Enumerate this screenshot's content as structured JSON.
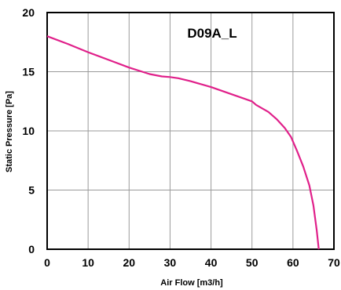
{
  "chart_data": {
    "type": "line",
    "title": "D09A_L",
    "xlabel": "Air Flow [m3/h]",
    "ylabel": "Static Pressure [Pa]",
    "xlim": [
      0,
      70
    ],
    "ylim": [
      0,
      20
    ],
    "xticks": [
      0,
      10,
      20,
      30,
      40,
      50,
      60,
      70
    ],
    "yticks": [
      0,
      5,
      10,
      15,
      20
    ],
    "grid": true,
    "series": [
      {
        "color": "#e0208a",
        "points": [
          [
            0,
            18.0
          ],
          [
            5,
            17.35
          ],
          [
            10,
            16.65
          ],
          [
            15,
            16.0
          ],
          [
            20,
            15.35
          ],
          [
            25,
            14.8
          ],
          [
            28,
            14.6
          ],
          [
            30,
            14.55
          ],
          [
            32,
            14.45
          ],
          [
            35,
            14.2
          ],
          [
            40,
            13.7
          ],
          [
            45,
            13.1
          ],
          [
            50,
            12.5
          ],
          [
            51,
            12.2
          ],
          [
            52,
            12.0
          ],
          [
            54,
            11.6
          ],
          [
            56,
            11.0
          ],
          [
            58,
            10.25
          ],
          [
            59.5,
            9.5
          ],
          [
            61,
            8.3
          ],
          [
            62.5,
            7.0
          ],
          [
            64,
            5.4
          ],
          [
            65,
            3.7
          ],
          [
            65.8,
            1.6
          ],
          [
            66.3,
            0
          ]
        ]
      }
    ]
  }
}
